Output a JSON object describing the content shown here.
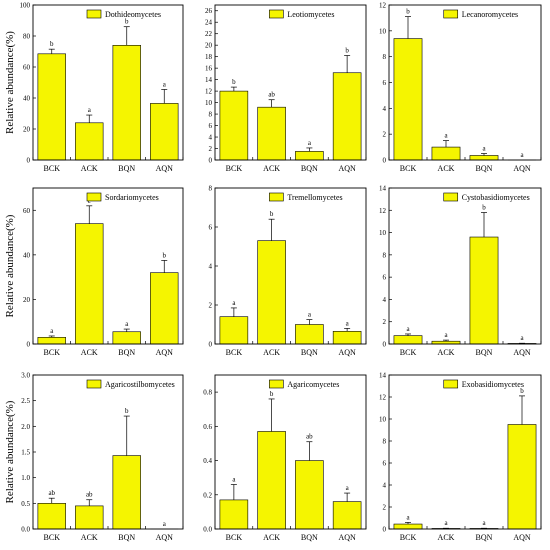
{
  "colors": {
    "bar": "#f5f500",
    "bar_stroke": "#000000"
  },
  "chart_data": [
    {
      "type": "bar",
      "categories": [
        "BCK",
        "ACK",
        "BQN",
        "AQN"
      ],
      "values": [
        68.5,
        24.0,
        74.0,
        36.5
      ],
      "errors": [
        3,
        5,
        12,
        9
      ],
      "sig": [
        "b",
        "a",
        "b",
        "a"
      ],
      "legend": "Dothideomycetes",
      "ylabel": "Relative abundance(%)",
      "ylim": [
        0,
        100
      ],
      "yticks": [
        0,
        20,
        40,
        60,
        80,
        100
      ],
      "ytick_labels": [
        "0",
        "20",
        "40",
        "60",
        "80",
        "100"
      ]
    },
    {
      "type": "bar",
      "categories": [
        "BCK",
        "ACK",
        "BQN",
        "AQN"
      ],
      "values": [
        12.0,
        9.2,
        1.5,
        15.2
      ],
      "errors": [
        0.7,
        1.3,
        0.6,
        3.0
      ],
      "sig": [
        "b",
        "ab",
        "a",
        "b"
      ],
      "legend": "Leotiomycetes",
      "ylabel": "",
      "ylim": [
        0,
        27
      ],
      "yticks": [
        0,
        2,
        4,
        6,
        8,
        10,
        12,
        14,
        16,
        18,
        20,
        22,
        24,
        26
      ],
      "ytick_labels": [
        "0",
        "2",
        "4",
        "6",
        "8",
        "10",
        "12",
        "14",
        "16",
        "18",
        "20",
        "22",
        "24",
        "26"
      ]
    },
    {
      "type": "bar",
      "categories": [
        "BCK",
        "ACK",
        "BQN",
        "AQN"
      ],
      "values": [
        9.4,
        1.0,
        0.35,
        0.0
      ],
      "errors": [
        1.7,
        0.5,
        0.15,
        0
      ],
      "sig": [
        "b",
        "a",
        "a",
        "a"
      ],
      "legend": "Lecanoromycetes",
      "ylabel": "",
      "ylim": [
        0,
        12
      ],
      "yticks": [
        0,
        2,
        4,
        6,
        8,
        10,
        12
      ],
      "ytick_labels": [
        "0",
        "2",
        "4",
        "6",
        "8",
        "10",
        "12"
      ]
    },
    {
      "type": "bar",
      "categories": [
        "BCK",
        "ACK",
        "BQN",
        "AQN"
      ],
      "values": [
        3.0,
        54.0,
        5.5,
        32.0
      ],
      "errors": [
        0.6,
        8,
        1.2,
        5.5
      ],
      "sig": [
        "a",
        "c",
        "a",
        "b"
      ],
      "legend": "Sordariomycetes",
      "ylabel": "Relative abundance(%)",
      "ylim": [
        0,
        70
      ],
      "yticks": [
        0,
        20,
        40,
        60
      ],
      "ytick_labels": [
        "0",
        "20",
        "40",
        "60"
      ]
    },
    {
      "type": "bar",
      "categories": [
        "BCK",
        "ACK",
        "BQN",
        "AQN"
      ],
      "values": [
        1.4,
        5.3,
        1.0,
        0.65
      ],
      "errors": [
        0.45,
        1.1,
        0.25,
        0.15
      ],
      "sig": [
        "a",
        "b",
        "a",
        "a"
      ],
      "legend": "Tremellomycetes",
      "ylabel": "",
      "ylim": [
        0,
        8
      ],
      "yticks": [
        0,
        2,
        4,
        6,
        8
      ],
      "ytick_labels": [
        "0",
        "2",
        "4",
        "6",
        "8"
      ]
    },
    {
      "type": "bar",
      "categories": [
        "BCK",
        "ACK",
        "BQN",
        "AQN"
      ],
      "values": [
        0.75,
        0.25,
        9.6,
        0.05
      ],
      "errors": [
        0.15,
        0.1,
        2.2,
        0.02
      ],
      "sig": [
        "a",
        "a",
        "b",
        "a"
      ],
      "legend": "Cystobasidiomycetes",
      "ylabel": "",
      "ylim": [
        0,
        14
      ],
      "yticks": [
        0,
        2,
        4,
        6,
        8,
        10,
        12,
        14
      ],
      "ytick_labels": [
        "0",
        "2",
        "4",
        "6",
        "8",
        "10",
        "12",
        "14"
      ]
    },
    {
      "type": "bar",
      "categories": [
        "BCK",
        "ACK",
        "BQN",
        "AQN"
      ],
      "values": [
        0.5,
        0.45,
        1.43,
        0.0
      ],
      "errors": [
        0.1,
        0.12,
        0.77,
        0
      ],
      "sig": [
        "ab",
        "ab",
        "b",
        "a"
      ],
      "legend": "Agaricostilbomycetes",
      "ylabel": "Relative abundance(%)",
      "ylim": [
        0,
        3
      ],
      "yticks": [
        0,
        0.5,
        1.0,
        1.5,
        2.0,
        2.5,
        3.0
      ],
      "ytick_labels": [
        "0.0",
        "0.5",
        "1.0",
        "1.5",
        "2.0",
        "2.5",
        "3.0"
      ]
    },
    {
      "type": "bar",
      "categories": [
        "BCK",
        "ACK",
        "BQN",
        "AQN"
      ],
      "values": [
        0.17,
        0.57,
        0.4,
        0.16
      ],
      "errors": [
        0.09,
        0.19,
        0.11,
        0.05
      ],
      "sig": [
        "a",
        "b",
        "ab",
        "a"
      ],
      "legend": "Agaricomycetes",
      "ylabel": "",
      "ylim": [
        0,
        0.9
      ],
      "yticks": [
        0,
        0.2,
        0.4,
        0.6,
        0.8
      ],
      "ytick_labels": [
        "0.0",
        "0.2",
        "0.4",
        "0.6",
        "0.8"
      ]
    },
    {
      "type": "bar",
      "categories": [
        "BCK",
        "ACK",
        "BQN",
        "AQN"
      ],
      "values": [
        0.45,
        0.05,
        0.05,
        9.5
      ],
      "errors": [
        0.15,
        0.02,
        0.02,
        2.6
      ],
      "sig": [
        "a",
        "a",
        "a",
        "b"
      ],
      "legend": "Exobasidiomycetes",
      "ylabel": "",
      "ylim": [
        0,
        14
      ],
      "yticks": [
        0,
        2,
        4,
        6,
        8,
        10,
        12,
        14
      ],
      "ytick_labels": [
        "0",
        "2",
        "4",
        "6",
        "8",
        "10",
        "12",
        "14"
      ]
    }
  ]
}
